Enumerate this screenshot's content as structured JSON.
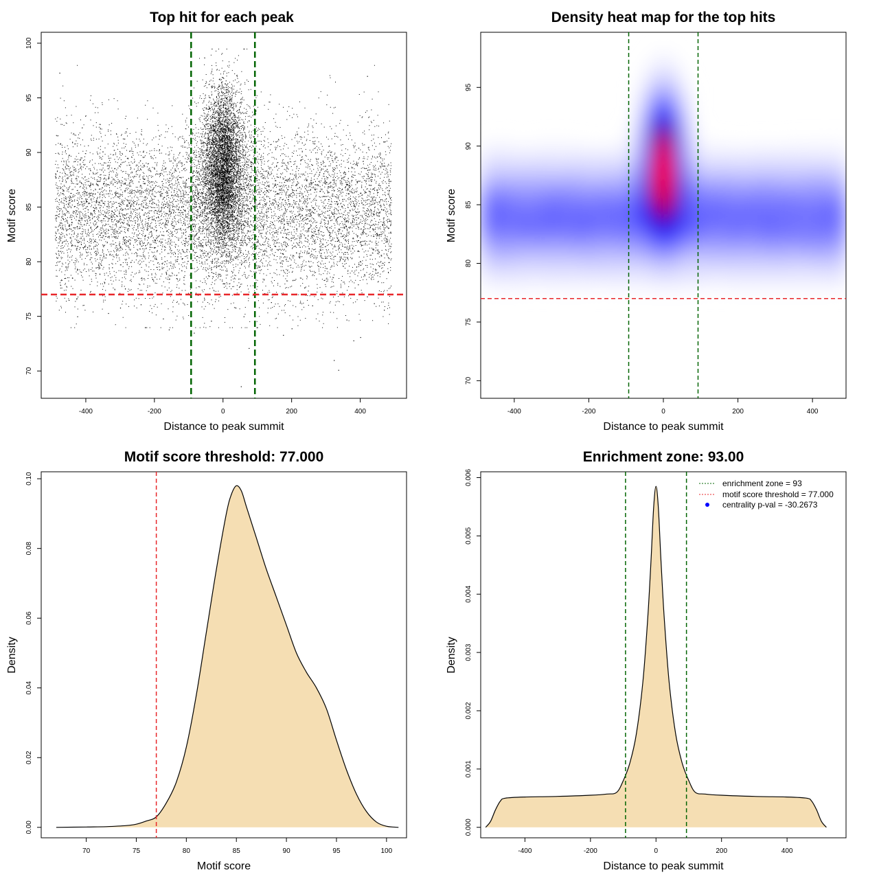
{
  "colors": {
    "scatter_point": "#000000",
    "window_line": "#006400",
    "threshold_line": "#e8262a",
    "density_fill": "#f5deb3",
    "heat_low": "#ffffff",
    "heat_mid": "#0000ff",
    "heat_high": "#ff0000"
  },
  "chart_data": [
    {
      "id": "scatter",
      "type": "scatter",
      "title": "Top hit for each peak",
      "xlabel": "Distance to peak summit",
      "ylabel": "Motif score",
      "xlim": [
        -530,
        535
      ],
      "ylim": [
        67.5,
        101
      ],
      "xticks": [
        -400,
        -200,
        0,
        200,
        400
      ],
      "yticks": [
        70,
        75,
        80,
        85,
        90,
        95,
        100
      ],
      "xtick_labels": [
        "-400",
        "-200",
        "0",
        "200",
        "400"
      ],
      "ytick_labels": [
        "70",
        "75",
        "80",
        "85",
        "90",
        "95",
        "100"
      ],
      "vlines": [
        -93,
        93
      ],
      "hline": 77,
      "grid": false,
      "background": {
        "count": 9000,
        "x_range": [
          -490,
          490
        ],
        "score_mean": 84.5,
        "score_sd": 3.8,
        "score_range": [
          74,
          98
        ],
        "point_color": "#000000"
      },
      "central": {
        "count": 6000,
        "x_mean": 0,
        "x_sd": 18,
        "score_mean": 88.5,
        "score_sd": 3.6,
        "score_range": [
          78,
          99.5
        ],
        "point_color": "#000000"
      },
      "outliers": [
        {
          "x": -477,
          "y": 97.3
        },
        {
          "x": 420,
          "y": 97.0
        },
        {
          "x": 336,
          "y": 70.1
        },
        {
          "x": 52,
          "y": 68.6
        },
        {
          "x": 75,
          "y": 72.1
        },
        {
          "x": 323,
          "y": 71.0
        },
        {
          "x": 400,
          "y": 73.1
        },
        {
          "x": 380,
          "y": 72.8
        },
        {
          "x": -158,
          "y": 73.8
        },
        {
          "x": -175,
          "y": 74.8
        },
        {
          "x": -425,
          "y": 75.0
        },
        {
          "x": 469,
          "y": 75.6
        },
        {
          "x": 175,
          "y": 73.3
        },
        {
          "x": 200,
          "y": 73.9
        },
        {
          "x": 98,
          "y": 74.0
        },
        {
          "x": -85,
          "y": 73.5
        },
        {
          "x": 440,
          "y": 76.2
        },
        {
          "x": -335,
          "y": 75.3
        },
        {
          "x": 360,
          "y": 74.7
        },
        {
          "x": -300,
          "y": 75.8
        },
        {
          "x": 260,
          "y": 76.0
        },
        {
          "x": -240,
          "y": 76.1
        },
        {
          "x": -450,
          "y": 76.5
        },
        {
          "x": 60,
          "y": 75.0
        },
        {
          "x": -35,
          "y": 74.6
        },
        {
          "x": 140,
          "y": 76.3
        }
      ]
    },
    {
      "id": "heatmap",
      "type": "heatmap",
      "title": "Density heat map for the top hits",
      "xlabel": "Distance to peak summit",
      "ylabel": "Motif score",
      "xlim": [
        -490,
        490
      ],
      "ylim": [
        68.5,
        99.7
      ],
      "xticks": [
        -400,
        -200,
        0,
        200,
        400
      ],
      "yticks": [
        70,
        75,
        80,
        85,
        90,
        95
      ],
      "xtick_labels": [
        "-400",
        "-200",
        "0",
        "200",
        "400"
      ],
      "ytick_labels": [
        "70",
        "75",
        "80",
        "85",
        "90",
        "95"
      ],
      "vlines": [
        -93,
        93
      ],
      "hline": 77,
      "color_scale": [
        "#ffffff",
        "#0000ff",
        "#ff0000"
      ],
      "background_density": {
        "score_mean": 84.0,
        "score_sd": 2.6,
        "x_range": [
          -490,
          490
        ],
        "level": 0.3
      },
      "central_density": {
        "x_mean": 0,
        "x_sd": 30,
        "score_mean": 88.5,
        "score_sd": 3.3,
        "level": 1.0
      }
    },
    {
      "id": "score-density",
      "type": "area",
      "title": "Motif score threshold: 77.000",
      "xlabel": "Motif score",
      "ylabel": "Density",
      "xlim": [
        65.5,
        102
      ],
      "ylim": [
        -0.003,
        0.102
      ],
      "xticks": [
        70,
        75,
        80,
        85,
        90,
        95,
        100
      ],
      "yticks": [
        0,
        0.02,
        0.04,
        0.06,
        0.08,
        0.1
      ],
      "xtick_labels": [
        "70",
        "75",
        "80",
        "85",
        "90",
        "95",
        "100"
      ],
      "ytick_labels": [
        "0.00",
        "0.02",
        "0.04",
        "0.06",
        "0.08",
        "0.10"
      ],
      "vline": 77,
      "x": [
        67,
        70,
        72,
        74,
        75,
        76,
        77,
        78,
        79,
        80,
        81,
        82,
        83,
        84,
        84.5,
        85,
        85.5,
        86,
        87,
        88,
        89,
        90,
        91,
        92,
        93,
        94,
        95,
        96,
        97,
        98,
        99,
        100,
        101.2
      ],
      "y": [
        0,
        0.0001,
        0.0002,
        0.0005,
        0.0009,
        0.0018,
        0.003,
        0.007,
        0.013,
        0.023,
        0.038,
        0.056,
        0.074,
        0.09,
        0.0955,
        0.098,
        0.0965,
        0.092,
        0.083,
        0.074,
        0.066,
        0.058,
        0.05,
        0.0445,
        0.04,
        0.034,
        0.025,
        0.0165,
        0.0095,
        0.0045,
        0.0015,
        0.0003,
        0
      ]
    },
    {
      "id": "distance-density",
      "type": "area",
      "title": "Enrichment zone: 93.00",
      "xlabel": "Distance to peak summit",
      "ylabel": "Density",
      "xlim": [
        -535,
        580
      ],
      "ylim": [
        -0.00018,
        0.0061
      ],
      "xticks": [
        -400,
        -200,
        0,
        200,
        400
      ],
      "yticks": [
        0,
        0.001,
        0.002,
        0.003,
        0.004,
        0.005,
        0.006
      ],
      "xtick_labels": [
        "-400",
        "-200",
        "0",
        "200",
        "400"
      ],
      "ytick_labels": [
        "0.000",
        "0.001",
        "0.002",
        "0.003",
        "0.004",
        "0.005",
        "0.006"
      ],
      "vlines": [
        -93,
        93
      ],
      "x": [
        -520,
        -505,
        -490,
        -475,
        -460,
        -400,
        -300,
        -200,
        -150,
        -120,
        -100,
        -80,
        -60,
        -40,
        -25,
        -15,
        -7,
        0,
        7,
        15,
        25,
        40,
        60,
        80,
        100,
        120,
        150,
        200,
        300,
        400,
        460,
        475,
        490,
        505,
        520
      ],
      "y": [
        0,
        0.0001,
        0.0003,
        0.00045,
        0.0005,
        0.00052,
        0.00053,
        0.00055,
        0.00057,
        0.0006,
        0.0008,
        0.0011,
        0.0016,
        0.0025,
        0.0036,
        0.0046,
        0.0055,
        0.00585,
        0.0055,
        0.0046,
        0.0036,
        0.0025,
        0.0016,
        0.0011,
        0.0008,
        0.0006,
        0.00057,
        0.00055,
        0.00053,
        0.00052,
        0.0005,
        0.00045,
        0.0003,
        0.0001,
        0
      ],
      "legend": {
        "placement": "top-right",
        "entries": [
          {
            "label": "enrichment zone = 93",
            "color": "#006400",
            "kind": "dotted-line"
          },
          {
            "label": "motif score threshold = 77.000",
            "color": "#e8262a",
            "kind": "dotted-line"
          },
          {
            "label": "centrality p-val = -30.2673",
            "color": "#0000ff",
            "kind": "point"
          }
        ]
      }
    }
  ]
}
